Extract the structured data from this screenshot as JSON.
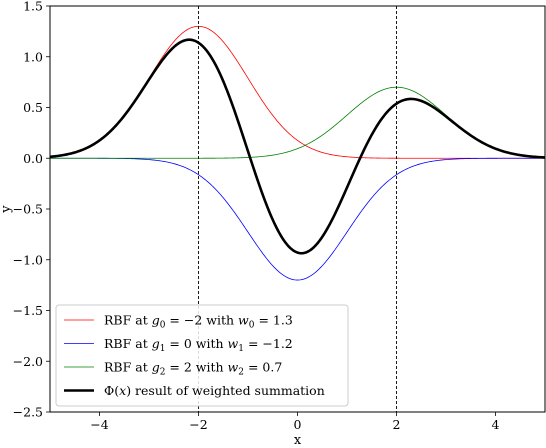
{
  "chart_data": {
    "type": "line",
    "title": "",
    "xlabel": "x",
    "ylabel": "y",
    "xlim": [
      -5,
      5
    ],
    "ylim": [
      -2.5,
      1.5
    ],
    "xticks": [
      -4,
      -2,
      0,
      2,
      4
    ],
    "xtick_labels": [
      "−4",
      "−2",
      "0",
      "2",
      "4"
    ],
    "yticks": [
      -2.5,
      -2.0,
      -1.5,
      -1.0,
      -0.5,
      0.0,
      0.5,
      1.0,
      1.5
    ],
    "ytick_labels": [
      "−2.5",
      "−2.0",
      "−1.5",
      "−1.0",
      "−0.5",
      "0.0",
      "0.5",
      "1.0",
      "1.5"
    ],
    "grid": false,
    "legend_position": "lower-left",
    "vlines": [
      -2,
      2
    ],
    "series": [
      {
        "name": "RBF at g0 = −2 with w0 = 1.3",
        "legend_parts": [
          "RBF at ",
          "g",
          "0",
          " = −2 with ",
          "w",
          "0",
          " = 1.3"
        ],
        "color": "#ff0000",
        "center": -2,
        "weight": 1.3,
        "sigma": 1.0,
        "width": 0.8
      },
      {
        "name": "RBF at g1 = 0 with w1 = −1.2",
        "legend_parts": [
          "RBF at ",
          "g",
          "1",
          " = 0 with ",
          "w",
          "1",
          " = −1.2"
        ],
        "color": "#0000ff",
        "center": 0,
        "weight": -1.2,
        "sigma": 1.0,
        "width": 0.8
      },
      {
        "name": "RBF at g2 = 2 with w2 = 0.7",
        "legend_parts": [
          "RBF at ",
          "g",
          "2",
          " = 2 with ",
          "w",
          "2",
          " = 0.7"
        ],
        "color": "#008000",
        "center": 2,
        "weight": 0.7,
        "sigma": 1.0,
        "width": 0.8
      },
      {
        "name": "Φ(x) result of weighted summation",
        "legend_parts": [
          "Φ(",
          "x",
          ") result of weighted summation"
        ],
        "color": "#000000",
        "sum_of": [
          0,
          1,
          2
        ],
        "width": 2.6
      }
    ]
  }
}
